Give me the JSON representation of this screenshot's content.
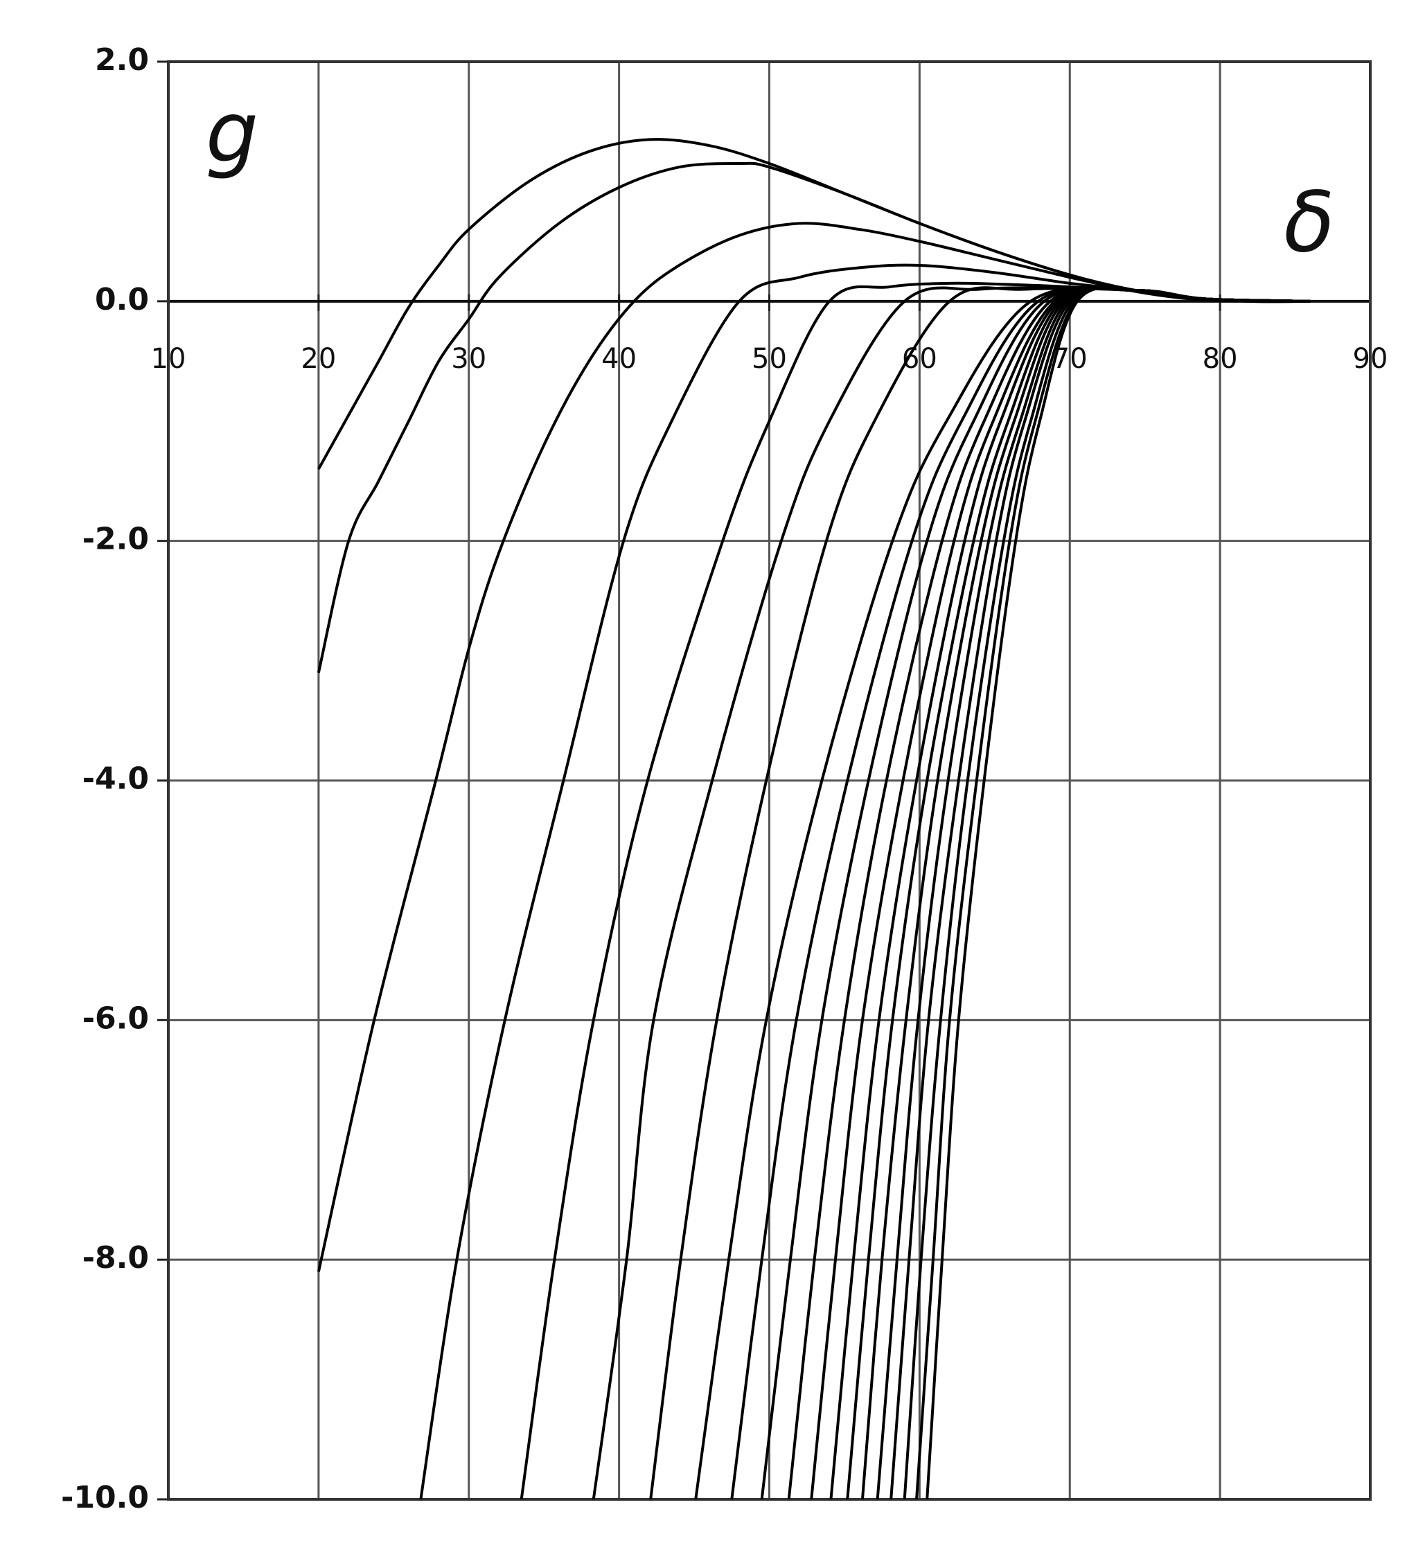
{
  "chart_data": {
    "type": "line",
    "xlabel": "δ",
    "ylabel": "g",
    "xlim": [
      10,
      90
    ],
    "ylim": [
      -10,
      2
    ],
    "xticks": [
      10,
      20,
      30,
      40,
      50,
      60,
      70,
      80,
      90
    ],
    "yticks": [
      {
        "value": 2,
        "label": "2.0"
      },
      {
        "value": 0,
        "label": "0.0"
      },
      {
        "value": -2,
        "label": "-2.0"
      },
      {
        "value": -4,
        "label": "-4.0"
      },
      {
        "value": -6,
        "label": "-6.0"
      },
      {
        "value": -8,
        "label": "-8.0"
      },
      {
        "value": -10,
        "label": "-10.0"
      }
    ],
    "grid": true,
    "series": [
      {
        "color": "#000000",
        "x": [
          20,
          22,
          24,
          26,
          28,
          30,
          34,
          38,
          42,
          46,
          50,
          55,
          60,
          65,
          70,
          74,
          78,
          82,
          86
        ],
        "values": [
          -1.4,
          -0.95,
          -0.5,
          -0.05,
          0.3,
          0.6,
          1.0,
          1.25,
          1.35,
          1.3,
          1.15,
          0.9,
          0.65,
          0.42,
          0.22,
          0.1,
          0.03,
          0,
          0
        ]
      },
      {
        "color": "#000000",
        "x": [
          20,
          22,
          24,
          26,
          28,
          30,
          32,
          36,
          40,
          44,
          48,
          50,
          55,
          60,
          65,
          70,
          74,
          78,
          82,
          86
        ],
        "values": [
          -3.1,
          -2.0,
          -1.5,
          -1.0,
          -0.5,
          -0.15,
          0.2,
          0.65,
          0.95,
          1.12,
          1.15,
          1.12,
          0.9,
          0.65,
          0.42,
          0.22,
          0.1,
          0.03,
          0,
          0
        ]
      },
      {
        "color": "#000000",
        "x": [
          20,
          23.7,
          27.8,
          30,
          32,
          35,
          38,
          41,
          44,
          48,
          52,
          56,
          60,
          65,
          70,
          74,
          78,
          82,
          86
        ],
        "values": [
          -8.1,
          -6,
          -4,
          -2.9,
          -2.1,
          -1.2,
          -0.5,
          0,
          0.3,
          0.55,
          0.65,
          0.6,
          0.5,
          0.35,
          0.2,
          0.09,
          0.02,
          0,
          0
        ]
      },
      {
        "color": "#000000",
        "x": [
          26.8,
          29.2,
          32.4,
          36.3,
          40.3,
          43.5,
          48,
          52,
          56,
          60,
          65,
          70,
          74.5,
          79,
          86
        ],
        "values": [
          -10,
          -8,
          -6,
          -4,
          -2,
          -1,
          0,
          0.2,
          0.28,
          0.3,
          0.24,
          0.15,
          0.09,
          0.02,
          0
        ]
      },
      {
        "color": "#000000",
        "x": [
          33.5,
          35.7,
          38.3,
          41.9,
          46.9,
          50,
          54,
          58,
          62,
          66,
          70,
          74.5,
          79,
          86
        ],
        "values": [
          -10,
          -8,
          -6,
          -4,
          -2,
          -1,
          0,
          0.12,
          0.15,
          0.14,
          0.12,
          0.09,
          0.02,
          0
        ]
      },
      {
        "color": "#000000",
        "x": [
          38.3,
          40.5,
          42.3,
          46.2,
          50.8,
          54,
          59,
          64,
          69,
          74.5,
          79,
          86
        ],
        "values": [
          -10,
          -8,
          -6,
          -4,
          -2,
          -1,
          0,
          0.1,
          0.11,
          0.09,
          0.02,
          0
        ]
      },
      {
        "color": "#000000",
        "x": [
          42.1,
          44.1,
          46.5,
          49.8,
          53.8,
          57,
          62,
          67,
          74.5,
          79,
          86
        ],
        "values": [
          -10,
          -8,
          -6,
          -4,
          -2,
          -1,
          0,
          0.1,
          0.09,
          0.02,
          0
        ]
      },
      {
        "color": "#000000",
        "x": [
          45.1,
          47.3,
          49.8,
          53.5,
          58.2,
          61.8,
          67.4,
          74.5,
          79,
          86
        ],
        "values": [
          -10,
          -8,
          -6,
          -4,
          -2,
          -1,
          0,
          0.09,
          0.02,
          0
        ]
      },
      {
        "color": "#000000",
        "x": [
          47.5,
          49.5,
          51.8,
          55.2,
          59.5,
          62.8,
          67.9,
          74.5,
          79,
          86
        ],
        "values": [
          -10,
          -8,
          -6,
          -4,
          -2,
          -1,
          0,
          0.09,
          0.02,
          0
        ]
      },
      {
        "color": "#000000",
        "x": [
          49.5,
          51.4,
          53.5,
          56.6,
          60.5,
          63.6,
          68.3,
          74.5,
          79,
          86
        ],
        "values": [
          -10,
          -8,
          -6,
          -4,
          -2,
          -1,
          0,
          0.09,
          0.02,
          0
        ]
      },
      {
        "color": "#000000",
        "x": [
          51.3,
          53.0,
          55.0,
          57.8,
          61.5,
          64.3,
          68.7,
          74.5,
          79,
          86
        ],
        "values": [
          -10,
          -8,
          -6,
          -4,
          -2,
          -1,
          0,
          0.09,
          0.02,
          0
        ]
      },
      {
        "color": "#000000",
        "x": [
          52.8,
          54.4,
          56.2,
          58.9,
          62.3,
          64.9,
          69.0,
          74.5,
          79,
          86
        ],
        "values": [
          -10,
          -8,
          -6,
          -4,
          -2,
          -1,
          0,
          0.09,
          0.02,
          0
        ]
      },
      {
        "color": "#000000",
        "x": [
          54.1,
          55.6,
          57.3,
          59.8,
          63.0,
          65.4,
          69.2,
          74.5,
          79,
          86
        ],
        "values": [
          -10,
          -8,
          -6,
          -4,
          -2,
          -1,
          0,
          0.09,
          0.02,
          0
        ]
      },
      {
        "color": "#000000",
        "x": [
          55.2,
          56.6,
          58.2,
          60.5,
          63.6,
          65.9,
          69.4,
          74.5,
          79,
          86
        ],
        "values": [
          -10,
          -8,
          -6,
          -4,
          -2,
          -1,
          0,
          0.09,
          0.02,
          0
        ]
      },
      {
        "color": "#000000",
        "x": [
          56.2,
          57.5,
          59.1,
          61.2,
          64.1,
          66.3,
          69.6,
          74.5,
          79,
          86
        ],
        "values": [
          -10,
          -8,
          -6,
          -4,
          -2,
          -1,
          0,
          0.09,
          0.02,
          0
        ]
      },
      {
        "color": "#000000",
        "x": [
          57.2,
          58.5,
          59.9,
          61.9,
          64.6,
          66.7,
          69.8,
          74.5,
          79,
          86
        ],
        "values": [
          -10,
          -8,
          -6,
          -4,
          -2,
          -1,
          0,
          0.09,
          0.02,
          0
        ]
      },
      {
        "color": "#000000",
        "x": [
          58.1,
          59.3,
          60.6,
          62.6,
          65.1,
          67.0,
          70.0,
          74.5,
          79,
          86
        ],
        "values": [
          -10,
          -8,
          -6,
          -4,
          -2,
          -1,
          0,
          0.09,
          0.02,
          0
        ]
      },
      {
        "color": "#000000",
        "x": [
          59.0,
          60.1,
          61.4,
          63.2,
          65.6,
          67.4,
          70.2,
          74.5,
          79,
          86
        ],
        "values": [
          -10,
          -8,
          -6,
          -4,
          -2,
          -1,
          0,
          0.09,
          0.02,
          0
        ]
      },
      {
        "color": "#000000",
        "x": [
          59.8,
          60.9,
          62.0,
          63.8,
          66.0,
          67.7,
          70.4,
          74.5,
          79,
          86
        ],
        "values": [
          -10,
          -8,
          -6,
          -4,
          -2,
          -1,
          0,
          0.09,
          0.02,
          0
        ]
      },
      {
        "color": "#000000",
        "x": [
          60.5,
          61.5,
          62.6,
          64.3,
          66.4,
          68.0,
          70.5,
          74.5,
          79,
          86
        ],
        "values": [
          -10,
          -8,
          -6,
          -4,
          -2,
          -1,
          0,
          0.09,
          0.02,
          0
        ]
      }
    ]
  }
}
